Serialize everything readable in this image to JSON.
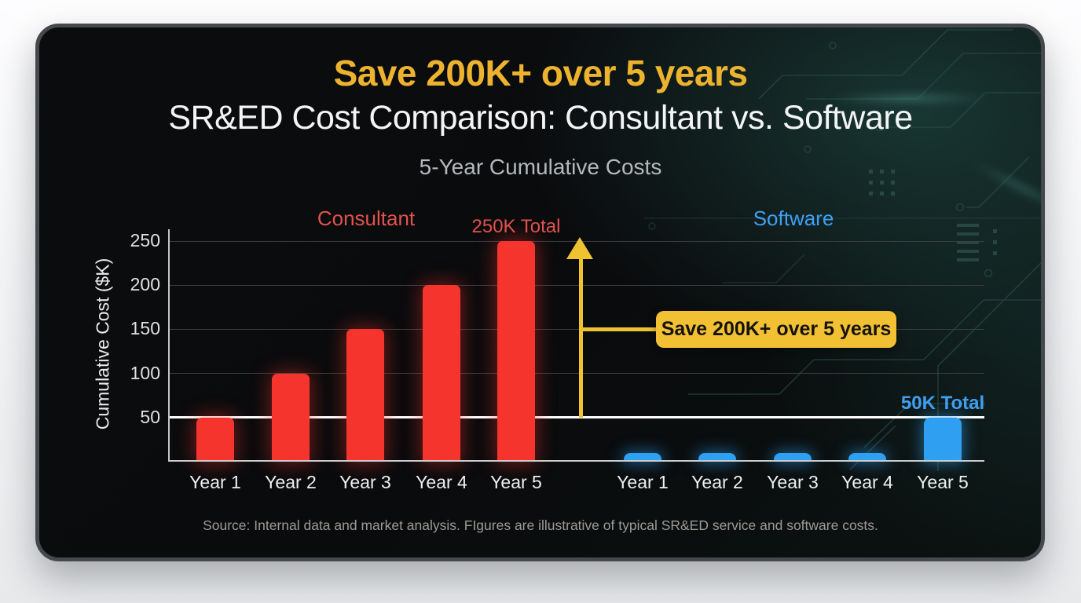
{
  "header": {
    "headline": "Save 200K+ over 5 years",
    "title": "SR&ED Cost Comparison: Consultant vs. Software",
    "subtitle": "5-Year Cumulative Costs"
  },
  "chart_data": {
    "type": "bar",
    "title": "5-Year Cumulative Costs",
    "ylabel": "Cumulative Cost ($K)",
    "ylim": [
      0,
      260
    ],
    "yticks": [
      50,
      100,
      150,
      200,
      250
    ],
    "grid": true,
    "categories": [
      "Year 1",
      "Year 2",
      "Year 3",
      "Year 4",
      "Year 5"
    ],
    "series": [
      {
        "name": "Consultant",
        "values": [
          50,
          100,
          150,
          200,
          250
        ],
        "total_label": "250K Total",
        "color": "#f5342d",
        "label_color": "#e0534d"
      },
      {
        "name": "Software",
        "values": [
          10,
          10,
          10,
          10,
          50
        ],
        "total_label": "50K Total",
        "color": "#2f9ff2",
        "label_color": "#3fa0f3"
      }
    ],
    "reference_line": {
      "value": 50,
      "color": "#ffffff"
    },
    "annotation": {
      "label": "Save 200K+ over 5 years",
      "bg": "#f2c133",
      "text_color": "#16130e",
      "arrow_color": "#eec231"
    }
  },
  "footer": {
    "source": "Source: Internal data and market analysis. FIgures are illustrative of typical SR&ED service and software costs."
  },
  "colors": {
    "page_bg": "#f0f1f3",
    "card_bg": "#0a0b0d",
    "card_border": "#45484c",
    "headline": "#edb32f",
    "title_text": "#f3f4f5",
    "subtitle_text": "#b5b9bc",
    "gridline": "#3a3d41",
    "axis": "#c3c6c8",
    "tick_text": "#dfe1e3",
    "source_text": "#9e9a94",
    "circuit_accent": "#2c504b"
  }
}
